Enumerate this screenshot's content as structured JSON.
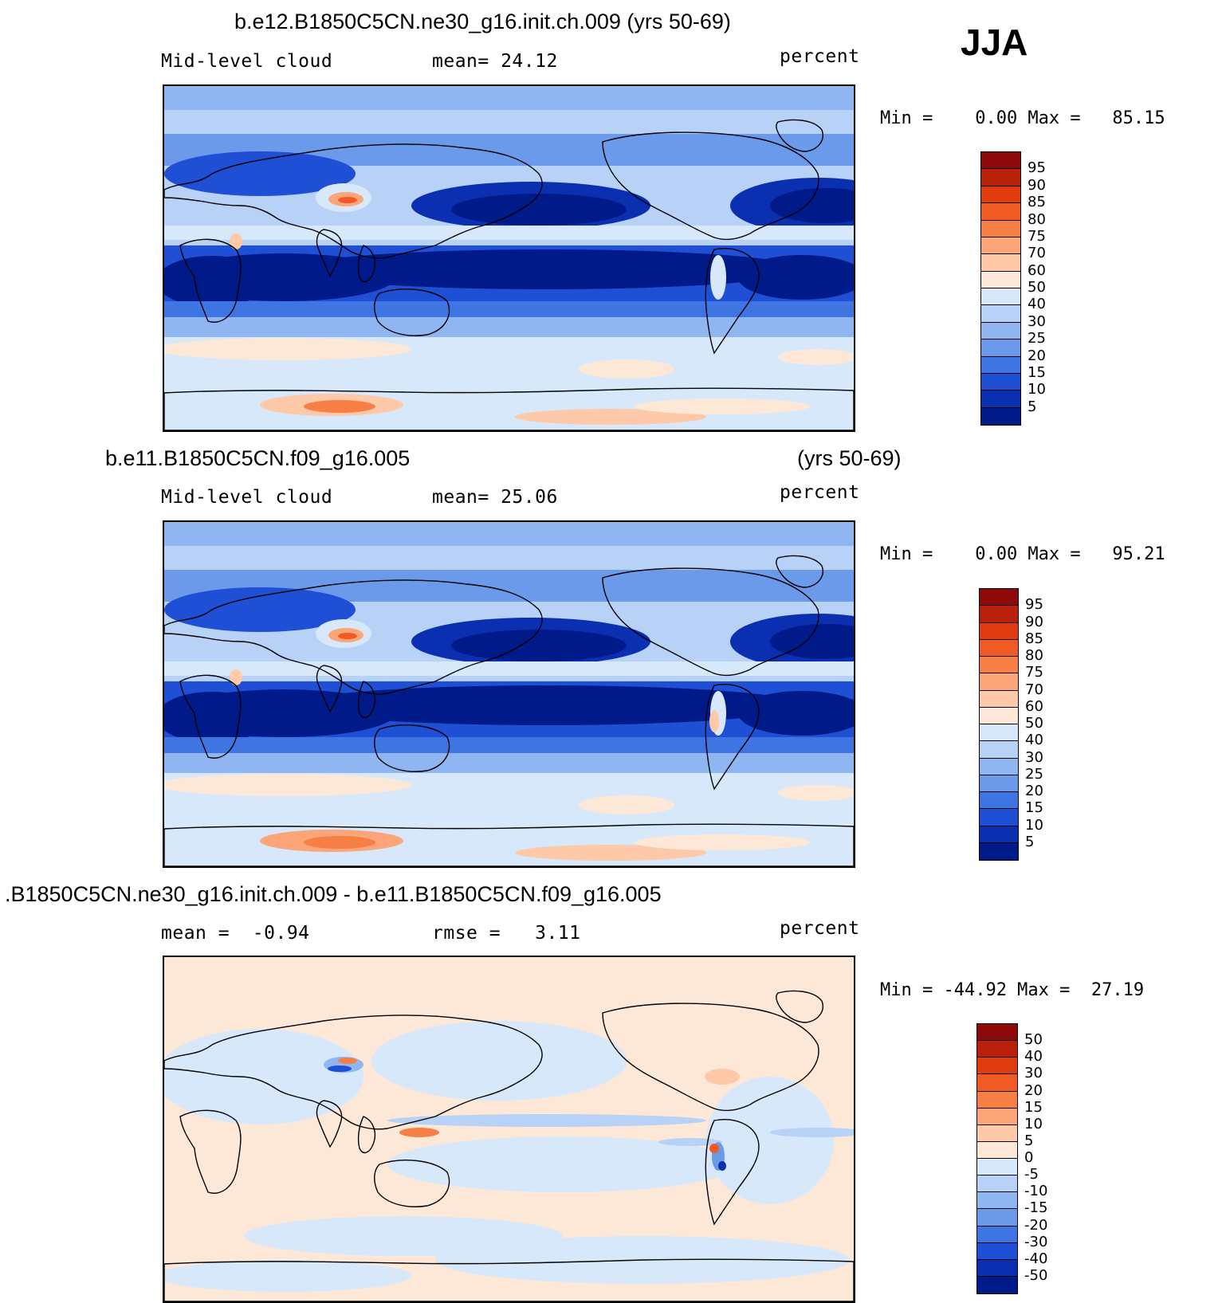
{
  "season": "JJA",
  "panels": [
    {
      "title": "b.e12.B1850C5CN.ne30_g16.init.ch.009 (yrs 50-69)",
      "title_right": "",
      "left_label": "Mid-level cloud",
      "center_label": "mean=  24.12",
      "right_label": "percent",
      "minmax": "Min =    0.00 Max =   85.15",
      "colorbar": {
        "levels": [
          "95",
          "90",
          "85",
          "80",
          "75",
          "70",
          "60",
          "50",
          "40",
          "30",
          "25",
          "20",
          "15",
          "10",
          "5"
        ],
        "colors": [
          "#8e0a0a",
          "#b8200c",
          "#df3c10",
          "#f15a22",
          "#f77e45",
          "#fba578",
          "#fdc9a8",
          "#fde8d8",
          "#d8e8fb",
          "#b7d1f7",
          "#90b6f2",
          "#6b9aeb",
          "#3f74e3",
          "#1e4fd4",
          "#0a2fb0",
          "#001a8a"
        ]
      },
      "scheme": "mean"
    },
    {
      "title": "b.e11.B1850C5CN.f09_g16.005",
      "title_right": "(yrs 50-69)",
      "left_label": "Mid-level cloud",
      "center_label": "mean=  25.06",
      "right_label": "percent",
      "minmax": "Min =    0.00 Max =   95.21",
      "colorbar": {
        "levels": [
          "95",
          "90",
          "85",
          "80",
          "75",
          "70",
          "60",
          "50",
          "40",
          "30",
          "25",
          "20",
          "15",
          "10",
          "5"
        ],
        "colors": [
          "#8e0a0a",
          "#b8200c",
          "#df3c10",
          "#f15a22",
          "#f77e45",
          "#fba578",
          "#fdc9a8",
          "#fde8d8",
          "#d8e8fb",
          "#b7d1f7",
          "#90b6f2",
          "#6b9aeb",
          "#3f74e3",
          "#1e4fd4",
          "#0a2fb0",
          "#001a8a"
        ]
      },
      "scheme": "mean2"
    },
    {
      "title": ".B1850C5CN.ne30_g16.init.ch.009 - b.e11.B1850C5CN.f09_g16.005",
      "title_right": "",
      "left_label": "mean =  -0.94",
      "center_label": "rmse =   3.11",
      "right_label": "percent",
      "minmax": "Min = -44.92 Max =  27.19",
      "colorbar": {
        "levels": [
          "50",
          "40",
          "30",
          "20",
          "15",
          "10",
          "5",
          "0",
          "-5",
          "-10",
          "-15",
          "-20",
          "-30",
          "-40",
          "-50"
        ],
        "colors": [
          "#8e0a0a",
          "#b8200c",
          "#df3c10",
          "#f15a22",
          "#f77e45",
          "#fba578",
          "#fdc9a8",
          "#fde8d8",
          "#d8e8fb",
          "#b7d1f7",
          "#90b6f2",
          "#6b9aeb",
          "#3f74e3",
          "#1e4fd4",
          "#0a2fb0",
          "#001a8a"
        ]
      },
      "scheme": "diff"
    }
  ]
}
